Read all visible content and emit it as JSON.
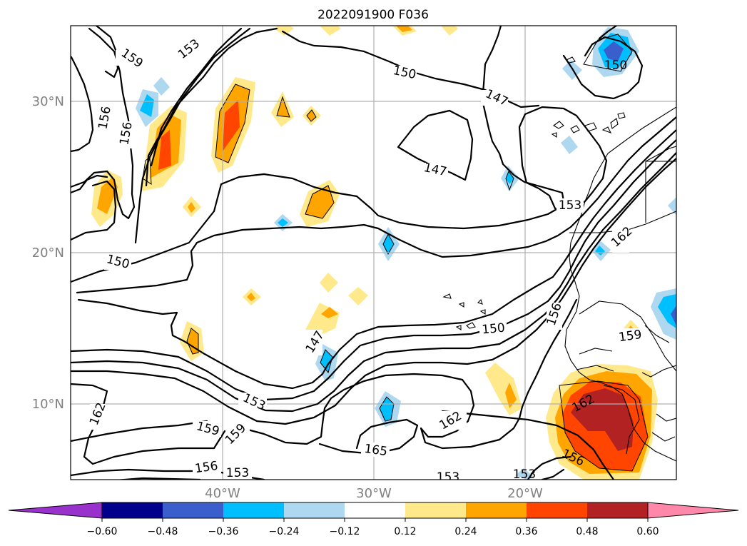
{
  "title": "2022091900 F036",
  "lat_labels": [
    "30°N",
    "20°N",
    "10°N"
  ],
  "lon_labels": [
    "40°W",
    "30°W",
    "20°W"
  ],
  "colorbar": {
    "levels": [
      "−0.60",
      "−0.48",
      "−0.36",
      "−0.24",
      "−0.12",
      "0.12",
      "0.24",
      "0.36",
      "0.48",
      "0.60"
    ],
    "colors": [
      "#9932cc",
      "#00008b",
      "#3a5fcd",
      "#00bfff",
      "#add8f0",
      "#ffffff",
      "#ffe98a",
      "#ffa500",
      "#ff4500",
      "#b22222",
      "#ff88aa"
    ]
  },
  "contour_labels": [
    "159",
    "153",
    "156",
    "156",
    "150",
    "150",
    "147",
    "147",
    "153",
    "150",
    "150",
    "162",
    "147",
    "156",
    "159",
    "153",
    "162",
    "159",
    "159",
    "156",
    "153",
    "165",
    "162",
    "162",
    "156",
    "153",
    "153"
  ]
}
